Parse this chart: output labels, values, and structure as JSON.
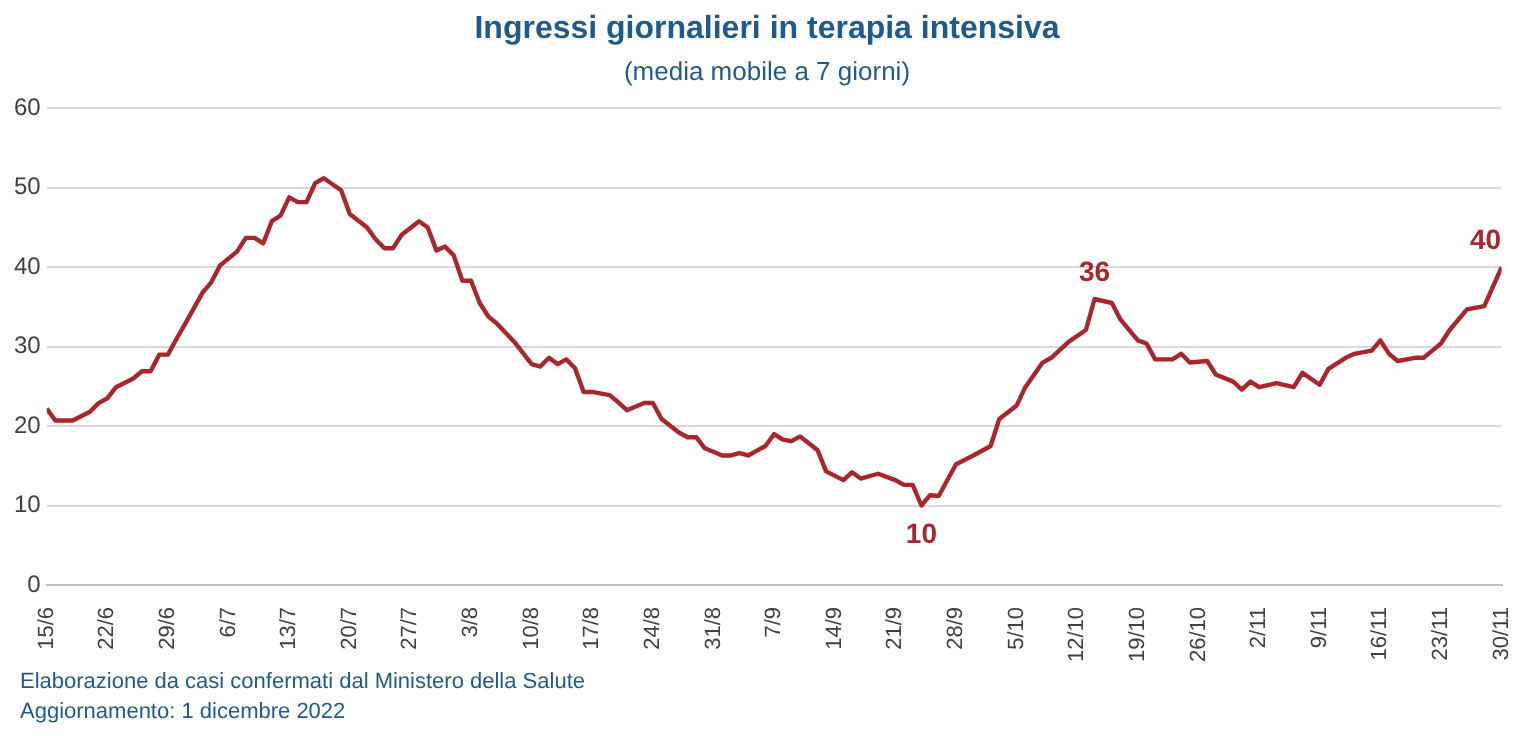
{
  "chart_data": {
    "type": "line",
    "title": "Ingressi giornalieri in terapia intensiva",
    "subtitle": "(media mobile a 7 giorni)",
    "x": [
      "--06-15",
      "--06-16",
      "--06-18",
      "--06-20",
      "--06-21",
      "--06-22",
      "--06-23",
      "--06-25",
      "--06-26",
      "--06-27",
      "--06-28",
      "--06-29",
      "--06-30",
      "--07-01",
      "--07-03",
      "--07-04",
      "--07-05",
      "--07-07",
      "--07-08",
      "--07-09",
      "--07-10",
      "--07-11",
      "--07-12",
      "--07-13",
      "--07-14",
      "--07-15",
      "--07-16",
      "--07-17",
      "--07-19",
      "--07-20",
      "--07-22",
      "--07-23",
      "--07-24",
      "--07-25",
      "--07-26",
      "--07-28",
      "--07-29",
      "--07-30",
      "--07-31",
      "--08-01",
      "--08-02",
      "--08-03",
      "--08-04",
      "--08-05",
      "--08-06",
      "--08-08",
      "--08-10",
      "--08-11",
      "--08-12",
      "--08-13",
      "--08-14",
      "--08-15",
      "--08-16",
      "--08-17",
      "--08-19",
      "--08-20",
      "--08-21",
      "--08-23",
      "--08-24",
      "--08-25",
      "--08-27",
      "--08-28",
      "--08-29",
      "--08-30",
      "--09-01",
      "--09-02",
      "--09-03",
      "--09-04",
      "--09-06",
      "--09-07",
      "--09-08",
      "--09-09",
      "--09-10",
      "--09-12",
      "--09-13",
      "--09-15",
      "--09-16",
      "--09-17",
      "--09-19",
      "--09-21",
      "--09-22",
      "--09-23",
      "--09-24",
      "--09-25",
      "--09-26",
      "--09-28",
      "--09-30",
      "--10-02",
      "--10-03",
      "--10-05",
      "--10-06",
      "--10-08",
      "--10-09",
      "--10-11",
      "--10-13",
      "--10-14",
      "--10-16",
      "--10-17",
      "--10-19",
      "--10-20",
      "--10-21",
      "--10-23",
      "--10-24",
      "--10-25",
      "--10-27",
      "--10-28",
      "--10-30",
      "--10-31",
      "--11-01",
      "--11-02",
      "--11-04",
      "--11-06",
      "--11-07",
      "--11-09",
      "--11-10",
      "--11-12",
      "--11-13",
      "--11-15",
      "--11-16",
      "--11-17",
      "--11-18",
      "--11-20",
      "--11-21",
      "--11-22",
      "--11-23",
      "--11-24",
      "--11-26",
      "--11-28",
      "--11-30"
    ],
    "values": [
      22.2,
      20.7,
      20.7,
      21.8,
      22.9,
      23.5,
      24.9,
      26,
      26.9,
      26.9,
      29,
      29,
      31,
      32.9,
      36.8,
      38.1,
      40.2,
      42,
      43.7,
      43.7,
      43,
      45.8,
      46.5,
      48.8,
      48.2,
      48.2,
      50.6,
      51.2,
      49.7,
      46.7,
      45,
      43.5,
      42.4,
      42.4,
      44.1,
      45.8,
      45,
      42.1,
      42.6,
      41.5,
      38.3,
      38.3,
      35.5,
      33.8,
      32.9,
      30.6,
      27.8,
      27.5,
      28.6,
      27.8,
      28.4,
      27.3,
      24.3,
      24.3,
      23.9,
      23,
      22,
      22.9,
      22.9,
      20.9,
      19.2,
      18.6,
      18.6,
      17.2,
      16.3,
      16.3,
      16.6,
      16.3,
      17.5,
      19,
      18.3,
      18.1,
      18.7,
      17,
      14.3,
      13.2,
      14.2,
      13.4,
      14,
      13.2,
      12.6,
      12.6,
      10,
      11.3,
      11.2,
      15.2,
      16.3,
      17.5,
      20.9,
      22.6,
      24.9,
      28,
      28.6,
      30.6,
      32.1,
      36,
      35.5,
      33.4,
      30.8,
      30.4,
      28.4,
      28.4,
      29.1,
      28,
      28.2,
      26.5,
      25.6,
      24.6,
      25.6,
      24.9,
      25.4,
      24.9,
      26.7,
      25.2,
      27.2,
      28.6,
      29.1,
      29.5,
      30.8,
      29.1,
      28.2,
      28.6,
      28.6,
      29.5,
      30.4,
      32.1,
      34.7,
      35.1,
      40
    ],
    "color": "#a8262c",
    "marker": "none",
    "grid": "y",
    "xlim": [
      "--06-15",
      "--11-30"
    ],
    "xticks": [
      {
        "value": "--06-15",
        "label": "15/6"
      },
      {
        "value": "--06-22",
        "label": "22/6"
      },
      {
        "value": "--06-29",
        "label": "29/6"
      },
      {
        "value": "--07-06",
        "label": "6/7"
      },
      {
        "value": "--07-13",
        "label": "13/7"
      },
      {
        "value": "--07-20",
        "label": "20/7"
      },
      {
        "value": "--07-27",
        "label": "27/7"
      },
      {
        "value": "--08-03",
        "label": "3/8"
      },
      {
        "value": "--08-10",
        "label": "10/8"
      },
      {
        "value": "--08-17",
        "label": "17/8"
      },
      {
        "value": "--08-24",
        "label": "24/8"
      },
      {
        "value": "--08-31",
        "label": "31/8"
      },
      {
        "value": "--09-07",
        "label": "7/9"
      },
      {
        "value": "--09-14",
        "label": "14/9"
      },
      {
        "value": "--09-21",
        "label": "21/9"
      },
      {
        "value": "--09-28",
        "label": "28/9"
      },
      {
        "value": "--10-05",
        "label": "5/10"
      },
      {
        "value": "--10-12",
        "label": "12/10"
      },
      {
        "value": "--10-19",
        "label": "19/10"
      },
      {
        "value": "--10-26",
        "label": "26/10"
      },
      {
        "value": "--11-02",
        "label": "2/11"
      },
      {
        "value": "--11-09",
        "label": "9/11"
      },
      {
        "value": "--11-16",
        "label": "16/11"
      },
      {
        "value": "--11-23",
        "label": "23/11"
      },
      {
        "value": "--11-30",
        "label": "30/11"
      }
    ],
    "ylim": [
      0,
      60
    ],
    "yticks": [
      0,
      10,
      20,
      30,
      40,
      50,
      60
    ],
    "annotations": [
      {
        "text": "10",
        "x": "--09-24",
        "y": 10
      },
      {
        "text": "36",
        "x": "--10-14",
        "y": 36
      },
      {
        "text": "40",
        "x": "--11-30",
        "y": 40
      },
      "Elaborazione da casi confermati dal Ministero della Salute",
      "Aggiornamento: 1 dicembre 2022"
    ]
  }
}
